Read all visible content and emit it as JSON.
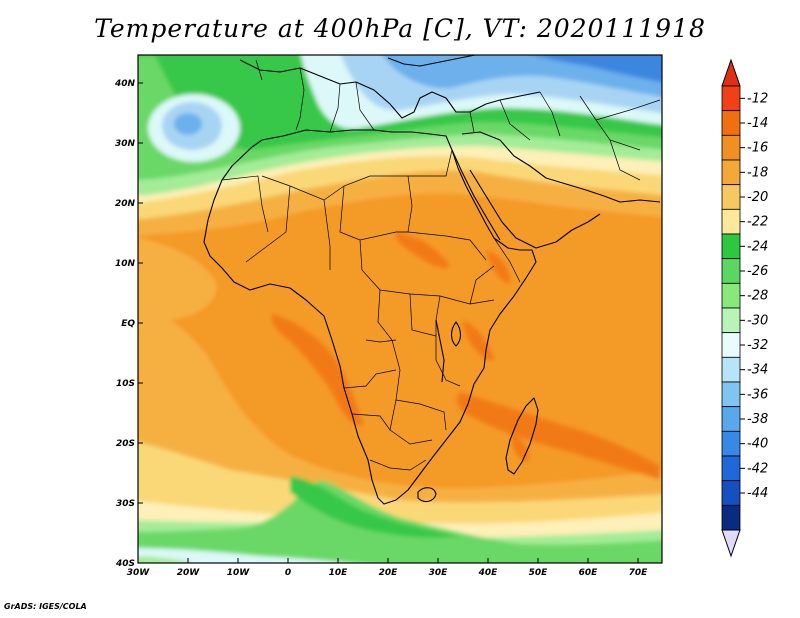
{
  "title": "Temperature at 400hPa [C], VT: 2020111918",
  "credit": "GrADS: IGES/COLA",
  "map": {
    "lon_ticks": [
      "30W",
      "20W",
      "10W",
      "0",
      "10E",
      "20E",
      "30E",
      "40E",
      "50E",
      "60E",
      "70E"
    ],
    "lat_ticks": [
      "40N",
      "30N",
      "20N",
      "10N",
      "EQ",
      "10S",
      "20S",
      "30S",
      "40S"
    ],
    "lon_range": [
      -30,
      75
    ],
    "lat_range": [
      -40,
      45
    ]
  },
  "colorbar": {
    "labels": [
      "-12",
      "-14",
      "-16",
      "-18",
      "-20",
      "-22",
      "-24",
      "-26",
      "-28",
      "-30",
      "-32",
      "-34",
      "-36",
      "-38",
      "-40",
      "-42",
      "-44"
    ],
    "colors": [
      "#f04018",
      "#f07010",
      "#f09020",
      "#f4a838",
      "#f8c860",
      "#fce89a",
      "#2ec840",
      "#58d860",
      "#88e878",
      "#b8f4b8",
      "#e8fcfc",
      "#b8e4f8",
      "#80c4f0",
      "#58a8ec",
      "#3888e8",
      "#2068d8",
      "#1450c0",
      "#0a2c80"
    ],
    "arrow_top_color": "#e03010",
    "arrow_bottom_color": "#e0dcf8"
  },
  "field_colors": {
    "orange_core": "#f27a18",
    "orange": "#f49a28",
    "orange_light": "#f6b042",
    "yellow": "#fad878",
    "cream": "#fdf0b8",
    "green_dark": "#38c848",
    "green": "#6ad866",
    "green_light": "#a4ec98",
    "cyan_light": "#dcf8f8",
    "blue_light": "#a8d4f4",
    "blue": "#6cb0ec",
    "blue_dark": "#3e86e0"
  }
}
